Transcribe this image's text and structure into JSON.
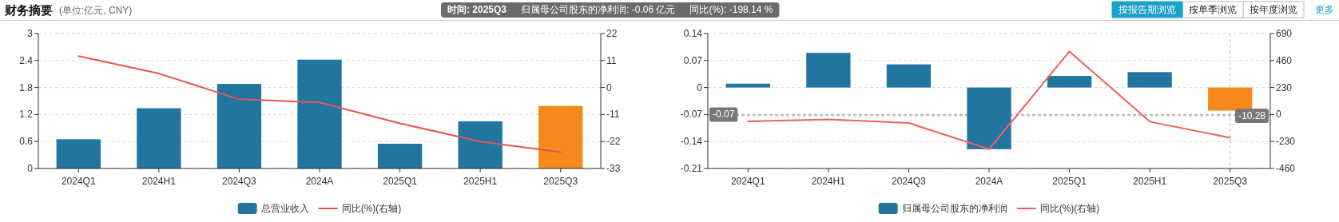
{
  "chart_data": [
    {
      "type": "other",
      "title": "财务摘要",
      "subtitle": "(单位:亿元, CNY)",
      "annotations": [
        "按报告期浏览",
        "按单季浏览",
        "按年度浏览",
        "更多"
      ]
    },
    {
      "type": "bar",
      "categories": [
        "2024Q1",
        "2024H1",
        "2024Q3",
        "2024A",
        "2025Q1",
        "2025H1",
        "2025Q3"
      ],
      "series": [
        {
          "type": "bar",
          "name": "总营业收入",
          "colors": [
            "#21759f",
            "#21759f",
            "#21759f",
            "#21759f",
            "#21759f",
            "#21759f",
            "#f5891b"
          ],
          "values": [
            0.65,
            1.34,
            1.88,
            2.42,
            0.55,
            1.05,
            1.39
          ]
        },
        {
          "type": "line",
          "name": "同比(%)(右轴)",
          "color": "#e55656",
          "axis": "y2",
          "values": [
            12.8,
            5.7,
            -4.8,
            -6.1,
            -14.6,
            -22,
            -26.3
          ]
        }
      ],
      "ylim": [
        0,
        3
      ],
      "yticks": [
        0,
        0.6,
        1.2,
        1.8,
        2.4,
        3
      ],
      "y2lim": [
        -33,
        22
      ],
      "y2ticks": [
        -33,
        -22,
        -11,
        0,
        11,
        22
      ],
      "grid": "y",
      "legend": "bottom"
    },
    {
      "type": "bar",
      "categories": [
        "2024Q1",
        "2024H1",
        "2024Q3",
        "2024A",
        "2025Q1",
        "2025H1",
        "2025Q3"
      ],
      "series": [
        {
          "type": "bar",
          "name": "归属母公司股东的净利润",
          "colors": [
            "#21759f",
            "#21759f",
            "#21759f",
            "#21759f",
            "#21759f",
            "#21759f",
            "#f5891b"
          ],
          "values": [
            0.01,
            0.09,
            0.06,
            -0.16,
            0.03,
            0.04,
            -0.06
          ]
        },
        {
          "type": "line",
          "name": "同比(%)(右轴)",
          "color": "#f0605f",
          "axis": "y2",
          "values": [
            -58,
            -41,
            -72,
            -295,
            537,
            -61,
            -198.14
          ]
        }
      ],
      "ylim": [
        -0.21,
        0.14
      ],
      "yticks": [
        -0.21,
        -0.14,
        -0.07,
        0,
        0.07,
        0.14
      ],
      "y2lim": [
        -460,
        690
      ],
      "y2ticks": [
        -460,
        -230,
        0,
        230,
        460,
        690
      ],
      "grid": "y",
      "legend": "bottom",
      "ref_lines": [
        {
          "axis": "y",
          "value": -0.07,
          "label": "-0.07"
        },
        {
          "axis": "y2",
          "value": -10.28,
          "label": "-10.28"
        },
        {
          "axis": "x",
          "value": "2025Q3"
        }
      ],
      "annotations": [
        "时间: 2025Q3",
        "归属母公司股东的净利润: -0.06 亿元",
        "同比(%): -198.14 %"
      ]
    }
  ]
}
